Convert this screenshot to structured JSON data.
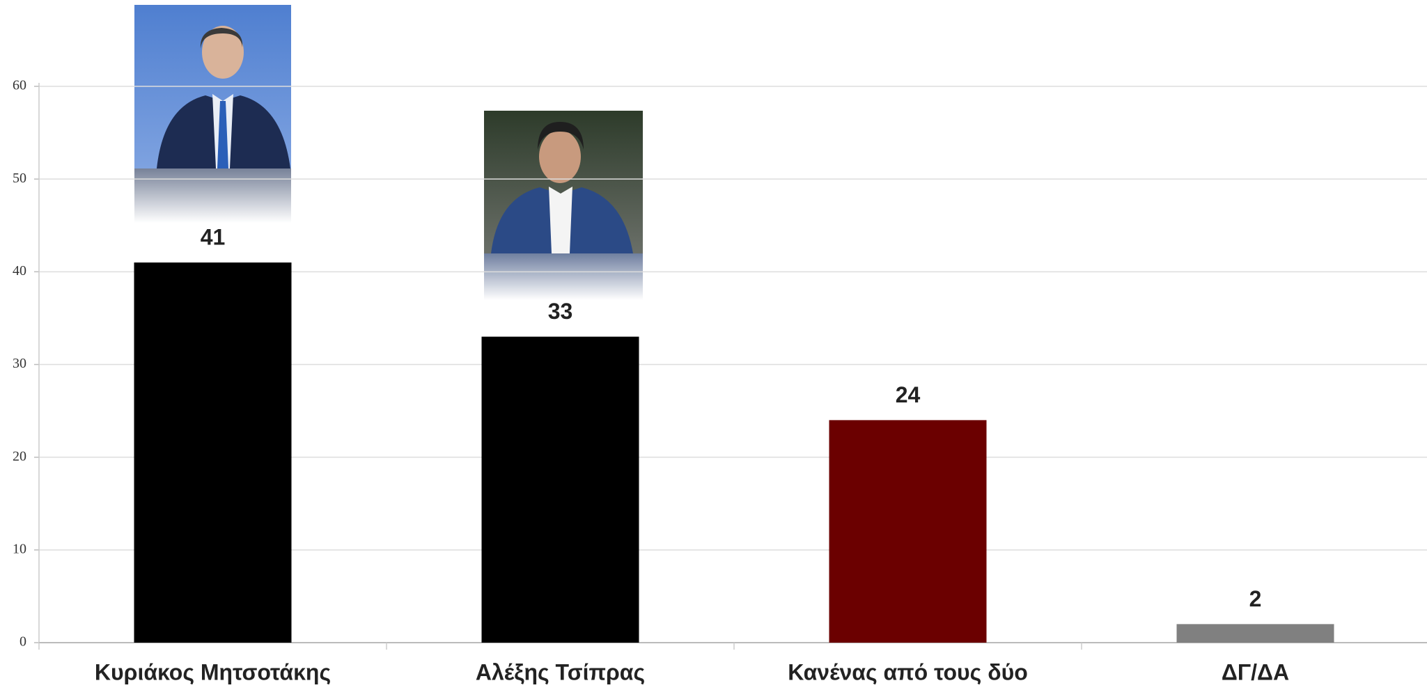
{
  "chart_data": {
    "type": "bar",
    "categories": [
      "Κυριάκος Μητσοτάκης",
      "Αλέξης Τσίπρας",
      "Κανένας από τους δύο",
      "ΔΓ/ΔΑ"
    ],
    "values": [
      41,
      33,
      24,
      2
    ],
    "colors": [
      "#000000",
      "#000000",
      "#6b0000",
      "#808080"
    ],
    "ylim": [
      0,
      60
    ],
    "yticks": [
      0,
      10,
      20,
      30,
      40,
      50,
      60
    ],
    "grid": true
  }
}
